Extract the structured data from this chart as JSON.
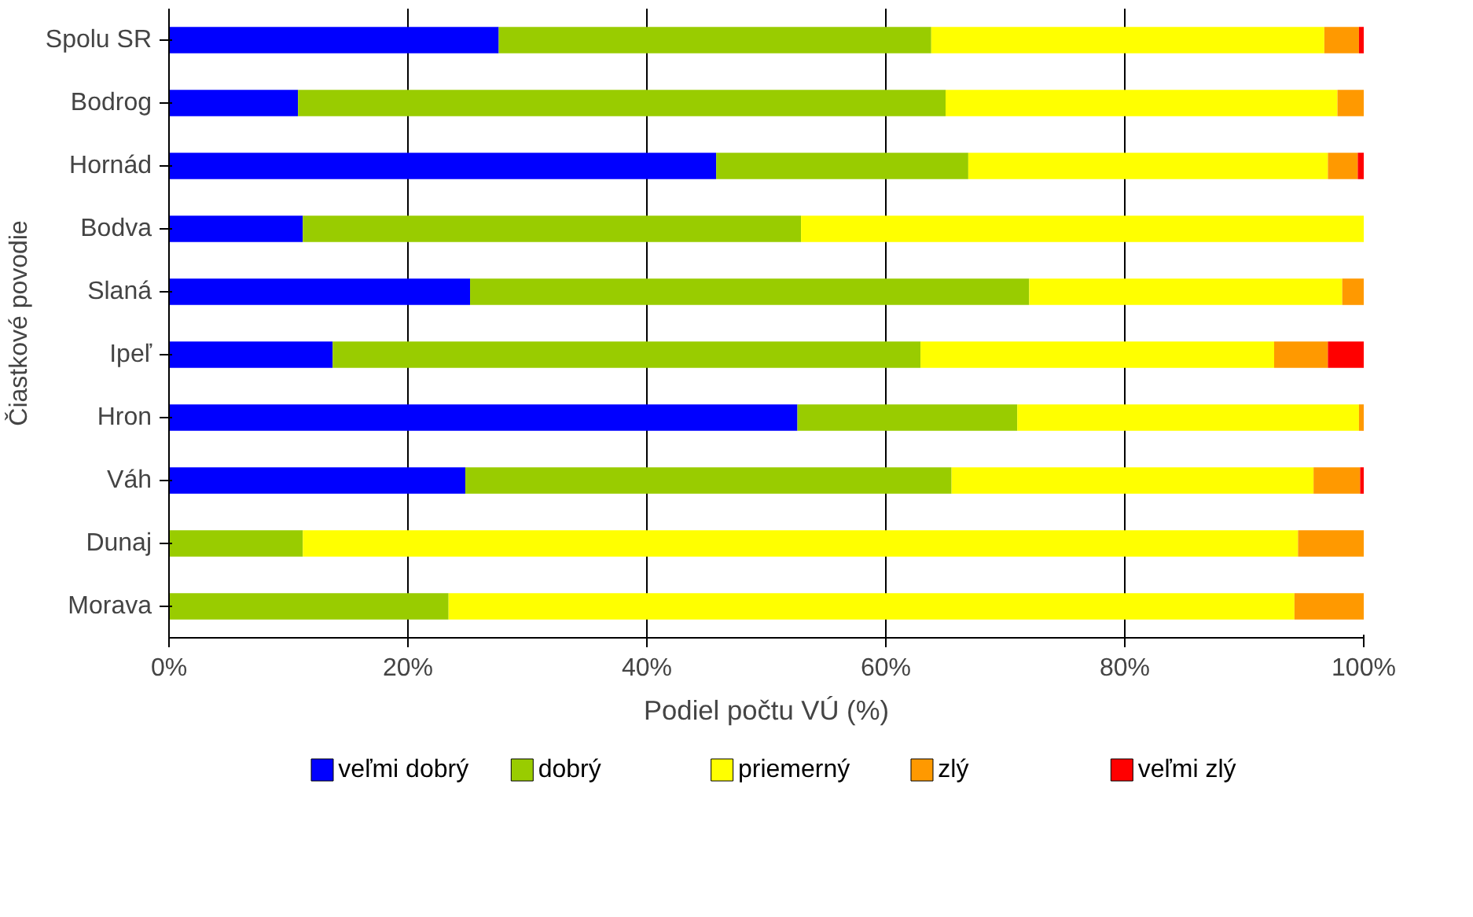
{
  "chart_data": {
    "type": "bar",
    "orientation": "horizontal",
    "stacked": true,
    "xlabel": "Podiel počtu VÚ (%)",
    "ylabel": "Čiastkové povodie",
    "categories": [
      "Spolu SR",
      "Bodrog",
      "Hornád",
      "Bodva",
      "Slaná",
      "Ipeľ",
      "Hron",
      "Váh",
      "Dunaj",
      "Morava"
    ],
    "series": [
      {
        "name": "veľmi dobrý",
        "color": "#0000ff",
        "values": [
          27.6,
          10.8,
          45.8,
          11.2,
          25.2,
          13.7,
          52.6,
          24.8,
          0,
          0
        ]
      },
      {
        "name": "dobrý",
        "color": "#99cc00",
        "values": [
          36.2,
          54.2,
          21.1,
          41.7,
          46.8,
          49.2,
          18.4,
          40.7,
          11.2,
          23.4
        ]
      },
      {
        "name": "priemerný",
        "color": "#ffff00",
        "values": [
          32.9,
          32.8,
          30.1,
          47.1,
          26.2,
          29.6,
          28.6,
          30.3,
          83.3,
          70.8
        ]
      },
      {
        "name": "zlý",
        "color": "#ff9900",
        "values": [
          2.9,
          2.2,
          2.5,
          0,
          1.8,
          4.5,
          0.4,
          3.9,
          5.5,
          5.8
        ]
      },
      {
        "name": "veľmi zlý",
        "color": "#ff0000",
        "values": [
          0.4,
          0,
          0.5,
          0,
          0,
          3.0,
          0,
          0.3,
          0,
          0
        ]
      }
    ],
    "xlim": [
      0,
      100
    ],
    "xticks": [
      {
        "value": 0,
        "label": "0%"
      },
      {
        "value": 20,
        "label": "20%"
      },
      {
        "value": 40,
        "label": "40%"
      },
      {
        "value": 60,
        "label": "60%"
      },
      {
        "value": 80,
        "label": "80%"
      },
      {
        "value": 100,
        "label": "100%"
      }
    ],
    "grid": "x",
    "legend": "bottom"
  }
}
